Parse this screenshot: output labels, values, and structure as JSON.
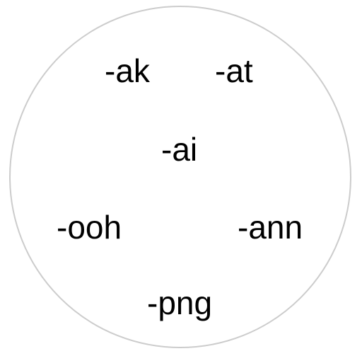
{
  "diagram": {
    "shape": "circle",
    "border_color": "#cccccc",
    "text_color": "#000000",
    "items": [
      {
        "label": "-ak"
      },
      {
        "label": "-at"
      },
      {
        "label": "-ai"
      },
      {
        "label": "-ooh"
      },
      {
        "label": "-ann"
      },
      {
        "label": "-png"
      }
    ]
  }
}
